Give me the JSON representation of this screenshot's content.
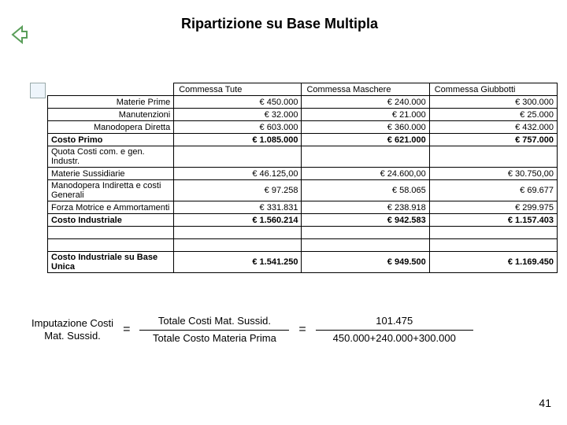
{
  "title": "Ripartizione su Base Multipla",
  "page_number": "41",
  "back_icon_color": "#5a9e5a",
  "table": {
    "headers": [
      "",
      "Commessa Tute",
      "Commessa Maschere",
      "Commessa Giubbotti"
    ],
    "rows": [
      {
        "label": "Materie Prime",
        "bold": false,
        "vals": [
          "€ 450.000",
          "€ 240.000",
          "€ 300.000"
        ]
      },
      {
        "label": "Manutenzioni",
        "bold": false,
        "vals": [
          "€ 32.000",
          "€ 21.000",
          "€ 25.000"
        ]
      },
      {
        "label": "Manodopera Diretta",
        "bold": false,
        "vals": [
          "€ 603.000",
          "€ 360.000",
          "€ 432.000"
        ]
      },
      {
        "label": "Costo Primo",
        "bold": true,
        "leftalign": true,
        "vals": [
          "€ 1.085.000",
          "€ 621.000",
          "€ 757.000"
        ]
      },
      {
        "label": "Quota Costi com. e gen. Industr.",
        "bold": false,
        "leftalign": true,
        "vals": [
          "",
          "",
          ""
        ]
      },
      {
        "label": "Materie Sussidiarie",
        "bold": false,
        "leftalign": true,
        "vals": [
          "€ 46.125,00",
          "€ 24.600,00",
          "€ 30.750,00"
        ]
      },
      {
        "label": "Manodopera Indiretta e costi Generali",
        "bold": false,
        "leftalign": true,
        "vals": [
          "€ 97.258",
          "€ 58.065",
          "€ 69.677"
        ]
      },
      {
        "label": "Forza Motrice e Ammortamenti",
        "bold": false,
        "leftalign": true,
        "vals": [
          "€ 331.831",
          "€ 238.918",
          "€ 299.975"
        ]
      },
      {
        "label": "Costo Industriale",
        "bold": true,
        "leftalign": true,
        "vals": [
          "€ 1.560.214",
          "€ 942.583",
          "€ 1.157.403"
        ]
      },
      {
        "label": "",
        "bold": false,
        "vals": [
          "",
          "",
          ""
        ]
      },
      {
        "label": "",
        "bold": false,
        "vals": [
          "",
          "",
          ""
        ]
      },
      {
        "label": "Costo Industriale su Base Unica",
        "bold": true,
        "leftalign": true,
        "vals": [
          "€ 1.541.250",
          "€ 949.500",
          "€ 1.169.450"
        ]
      }
    ]
  },
  "formula": {
    "lhs_top": "Imputazione Costi",
    "lhs_bot": "Mat. Sussid.",
    "mid_top": "Totale Costi Mat. Sussid.",
    "mid_bot": "Totale Costo Materia Prima",
    "rhs_top": "101.475",
    "rhs_bot": "450.000+240.000+300.000"
  }
}
